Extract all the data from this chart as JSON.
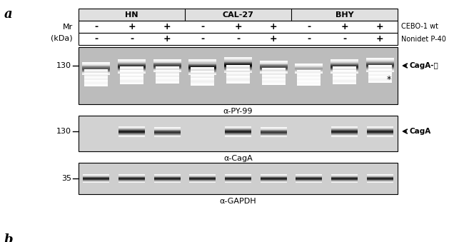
{
  "panel_label": "a",
  "cell_lines": [
    "HN",
    "CAL-27",
    "BHY"
  ],
  "row1_label": "CEBO-1 wt",
  "row2_label": "Nonidet P-40",
  "mr_label_line1": "Mr",
  "mr_label_line2": "(kDa)",
  "row1_values": [
    "-",
    "+",
    "+",
    "-",
    "+",
    "+",
    "-",
    "+",
    "+"
  ],
  "row2_values": [
    "-",
    "-",
    "+",
    "-",
    "-",
    "+",
    "-",
    "-",
    "+"
  ],
  "blot1_label": "α-PY-99",
  "blot2_label": "α-CagA",
  "blot3_label": "α-GAPDH",
  "blot1_marker": "130",
  "blot2_marker": "130",
  "blot3_marker": "35",
  "blot1_annotation": "CagA-ⓟ",
  "blot2_annotation": "CagA",
  "bg_color": "#ffffff",
  "header_bg": "#e0e0e0",
  "figure_width": 6.5,
  "figure_height": 3.39
}
